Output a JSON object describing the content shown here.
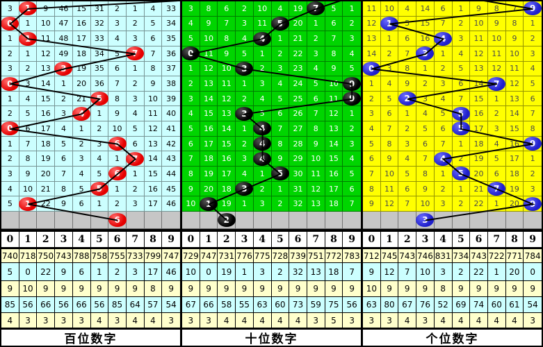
{
  "styles": {
    "gray_row_color": "#c6c6c6",
    "stats_row_colors": [
      "#ffffcc",
      "#ccffff",
      "#ffffcc",
      "#ccffff",
      "#ffffcc"
    ],
    "line_color": "#000000",
    "header_bg": "#ffffff"
  },
  "digit_headers": [
    "0",
    "1",
    "2",
    "3",
    "4",
    "5",
    "6",
    "7",
    "8",
    "9"
  ],
  "panels": [
    {
      "key": "hundreds",
      "label": "百位数字",
      "bg": "#ccffff",
      "text_color": "#000000",
      "ball_color": "#e60000",
      "ball_hi": "#ff6a6a",
      "rows": [
        [
          "3",
          "1",
          "9",
          "46",
          "15",
          "31",
          "2",
          "1",
          "4",
          "33"
        ],
        [
          "0",
          "1",
          "10",
          "47",
          "16",
          "32",
          "3",
          "2",
          "5",
          "34"
        ],
        [
          "1",
          "1",
          "11",
          "48",
          "17",
          "33",
          "4",
          "3",
          "6",
          "35"
        ],
        [
          "2",
          "1",
          "12",
          "49",
          "18",
          "34",
          "5",
          "7",
          "7",
          "36"
        ],
        [
          "3",
          "2",
          "13",
          "3",
          "19",
          "35",
          "6",
          "1",
          "8",
          "37"
        ],
        [
          "0",
          "3",
          "14",
          "1",
          "20",
          "36",
          "7",
          "2",
          "9",
          "38"
        ],
        [
          "1",
          "4",
          "15",
          "2",
          "21",
          "5",
          "8",
          "3",
          "10",
          "39"
        ],
        [
          "2",
          "5",
          "16",
          "3",
          "4",
          "1",
          "9",
          "4",
          "11",
          "40"
        ],
        [
          "0",
          "6",
          "17",
          "4",
          "1",
          "2",
          "10",
          "5",
          "12",
          "41"
        ],
        [
          "1",
          "7",
          "18",
          "5",
          "2",
          "3",
          "6",
          "6",
          "13",
          "42"
        ],
        [
          "2",
          "8",
          "19",
          "6",
          "3",
          "4",
          "1",
          "7",
          "14",
          "43"
        ],
        [
          "3",
          "9",
          "20",
          "7",
          "4",
          "5",
          "6",
          "1",
          "15",
          "44"
        ],
        [
          "4",
          "10",
          "21",
          "8",
          "5",
          "5",
          "1",
          "2",
          "16",
          "45"
        ],
        [
          "5",
          "1",
          "22",
          "9",
          "6",
          "1",
          "2",
          "3",
          "17",
          "46"
        ]
      ],
      "balls": [
        [
          0,
          1
        ],
        [
          1,
          0
        ],
        [
          2,
          1
        ],
        [
          3,
          7
        ],
        [
          4,
          3
        ],
        [
          5,
          0
        ],
        [
          6,
          5
        ],
        [
          7,
          4
        ],
        [
          8,
          0
        ],
        [
          9,
          6
        ],
        [
          10,
          7
        ],
        [
          11,
          6
        ],
        [
          12,
          5
        ],
        [
          13,
          1
        ]
      ],
      "gray_ball_col": 6,
      "entry": [
        16.4,
        -1
      ],
      "stats": [
        [
          "740",
          "718",
          "750",
          "743",
          "788",
          "758",
          "755",
          "733",
          "799",
          "747"
        ],
        [
          "5",
          "0",
          "22",
          "9",
          "6",
          "1",
          "2",
          "3",
          "17",
          "46"
        ],
        [
          "9",
          "10",
          "9",
          "9",
          "9",
          "9",
          "9",
          "9",
          "8",
          "9"
        ],
        [
          "85",
          "56",
          "66",
          "56",
          "66",
          "56",
          "85",
          "64",
          "57",
          "54"
        ],
        [
          "4",
          "3",
          "3",
          "3",
          "3",
          "4",
          "3",
          "4",
          "4",
          "3"
        ]
      ]
    },
    {
      "key": "tens",
      "label": "十位数字",
      "bg": "#00d500",
      "text_color": "#ffffff",
      "ball_color": "#000000",
      "ball_hi": "#555555",
      "rows": [
        [
          "3",
          "8",
          "6",
          "2",
          "10",
          "4",
          "19",
          "7",
          "5",
          "1"
        ],
        [
          "4",
          "9",
          "7",
          "3",
          "11",
          "5",
          "20",
          "1",
          "6",
          "2"
        ],
        [
          "5",
          "10",
          "8",
          "4",
          "4",
          "1",
          "21",
          "2",
          "7",
          "3"
        ],
        [
          "0",
          "11",
          "9",
          "5",
          "1",
          "2",
          "22",
          "3",
          "8",
          "4"
        ],
        [
          "1",
          "12",
          "10",
          "3",
          "2",
          "3",
          "23",
          "4",
          "9",
          "5"
        ],
        [
          "2",
          "13",
          "11",
          "1",
          "3",
          "4",
          "24",
          "5",
          "10",
          "9"
        ],
        [
          "3",
          "14",
          "12",
          "2",
          "4",
          "5",
          "25",
          "6",
          "11",
          "9"
        ],
        [
          "4",
          "15",
          "13",
          "3",
          "5",
          "6",
          "26",
          "7",
          "12",
          "1"
        ],
        [
          "5",
          "16",
          "14",
          "1",
          "4",
          "7",
          "27",
          "8",
          "13",
          "2"
        ],
        [
          "6",
          "17",
          "15",
          "2",
          "4",
          "8",
          "28",
          "9",
          "14",
          "3"
        ],
        [
          "7",
          "18",
          "16",
          "3",
          "4",
          "9",
          "29",
          "10",
          "15",
          "4"
        ],
        [
          "8",
          "19",
          "17",
          "4",
          "1",
          "5",
          "30",
          "11",
          "16",
          "5"
        ],
        [
          "9",
          "20",
          "18",
          "3",
          "2",
          "1",
          "31",
          "12",
          "17",
          "6"
        ],
        [
          "10",
          "1",
          "19",
          "1",
          "3",
          "2",
          "32",
          "13",
          "18",
          "7"
        ]
      ],
      "balls": [
        [
          0,
          7
        ],
        [
          1,
          5
        ],
        [
          2,
          4
        ],
        [
          3,
          0
        ],
        [
          4,
          3
        ],
        [
          5,
          9
        ],
        [
          6,
          9
        ],
        [
          7,
          3
        ],
        [
          8,
          4
        ],
        [
          9,
          4
        ],
        [
          10,
          4
        ],
        [
          11,
          5
        ],
        [
          12,
          3
        ],
        [
          13,
          1
        ]
      ],
      "gray_ball_col": 2,
      "entry": [
        9.5,
        -1
      ],
      "stats": [
        [
          "729",
          "747",
          "731",
          "776",
          "775",
          "728",
          "739",
          "751",
          "772",
          "783"
        ],
        [
          "10",
          "0",
          "19",
          "1",
          "3",
          "2",
          "32",
          "13",
          "18",
          "7"
        ],
        [
          "9",
          "9",
          "9",
          "9",
          "9",
          "9",
          "9",
          "9",
          "9",
          "9"
        ],
        [
          "67",
          "66",
          "58",
          "55",
          "63",
          "60",
          "73",
          "59",
          "75",
          "56"
        ],
        [
          "3",
          "3",
          "4",
          "4",
          "4",
          "4",
          "4",
          "3",
          "5",
          "3"
        ]
      ]
    },
    {
      "key": "ones",
      "label": "个位数字",
      "bg": "#ffff00",
      "text_color": "#4a4a4a",
      "ball_color": "#2020cc",
      "ball_hi": "#6a6aff",
      "rows": [
        [
          "11",
          "10",
          "4",
          "14",
          "6",
          "1",
          "9",
          "8",
          "7",
          "9"
        ],
        [
          "12",
          "1",
          "5",
          "15",
          "7",
          "2",
          "10",
          "9",
          "8",
          "1"
        ],
        [
          "13",
          "1",
          "6",
          "16",
          "4",
          "3",
          "11",
          "10",
          "9",
          "2"
        ],
        [
          "14",
          "2",
          "7",
          "3",
          "1",
          "4",
          "12",
          "11",
          "10",
          "3"
        ],
        [
          "0",
          "3",
          "8",
          "1",
          "2",
          "5",
          "13",
          "12",
          "11",
          "4"
        ],
        [
          "1",
          "4",
          "9",
          "2",
          "3",
          "6",
          "14",
          "7",
          "12",
          "5"
        ],
        [
          "2",
          "5",
          "2",
          "3",
          "4",
          "7",
          "15",
          "1",
          "13",
          "6"
        ],
        [
          "3",
          "6",
          "1",
          "4",
          "5",
          "5",
          "16",
          "2",
          "14",
          "7"
        ],
        [
          "4",
          "7",
          "2",
          "5",
          "6",
          "5",
          "17",
          "3",
          "15",
          "8"
        ],
        [
          "5",
          "8",
          "3",
          "6",
          "7",
          "1",
          "18",
          "4",
          "16",
          "9"
        ],
        [
          "6",
          "9",
          "4",
          "7",
          "4",
          "2",
          "19",
          "5",
          "17",
          "1"
        ],
        [
          "7",
          "10",
          "5",
          "8",
          "1",
          "5",
          "20",
          "6",
          "18",
          "2"
        ],
        [
          "8",
          "11",
          "6",
          "9",
          "2",
          "1",
          "21",
          "7",
          "19",
          "3"
        ],
        [
          "9",
          "12",
          "7",
          "10",
          "3",
          "2",
          "22",
          "1",
          "20",
          "9"
        ]
      ],
      "balls": [
        [
          0,
          9
        ],
        [
          1,
          1
        ],
        [
          2,
          4
        ],
        [
          3,
          3
        ],
        [
          4,
          0
        ],
        [
          5,
          7
        ],
        [
          6,
          2
        ],
        [
          7,
          5
        ],
        [
          8,
          5
        ],
        [
          9,
          9
        ],
        [
          10,
          4
        ],
        [
          11,
          5
        ],
        [
          12,
          7
        ],
        [
          13,
          9
        ]
      ],
      "gray_ball_col": 3,
      "entry": [
        4.0,
        -1
      ],
      "stats": [
        [
          "712",
          "745",
          "743",
          "746",
          "831",
          "734",
          "743",
          "722",
          "771",
          "784"
        ],
        [
          "9",
          "12",
          "7",
          "10",
          "3",
          "2",
          "22",
          "1",
          "20",
          "0"
        ],
        [
          "10",
          "9",
          "9",
          "9",
          "8",
          "9",
          "9",
          "9",
          "9",
          "9"
        ],
        [
          "63",
          "80",
          "67",
          "76",
          "52",
          "69",
          "74",
          "60",
          "61",
          "54"
        ],
        [
          "3",
          "3",
          "4",
          "3",
          "4",
          "4",
          "4",
          "4",
          "4",
          "3"
        ]
      ]
    }
  ]
}
